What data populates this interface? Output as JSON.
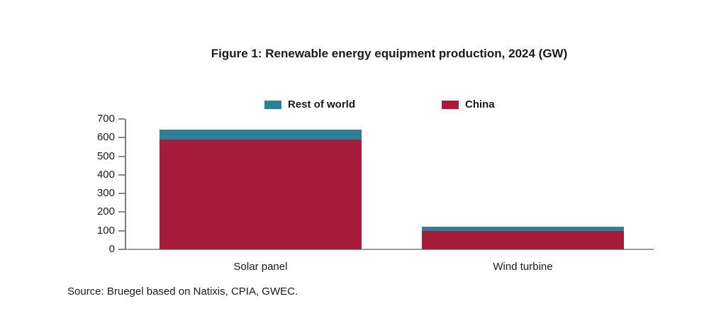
{
  "figure": {
    "source": "Source: Bruegel based on Natixis, CPIA, GWEC."
  },
  "chart_data": {
    "type": "bar",
    "stacked": true,
    "title": "Figure 1: Renewable energy equipment production, 2024 (GW)",
    "categories": [
      "Solar panel",
      "Wind turbine"
    ],
    "series": [
      {
        "name": "China",
        "color": "#A81C3B",
        "values": [
          588,
          100
        ]
      },
      {
        "name": "Rest of world",
        "color": "#2E7F97",
        "values": [
          55,
          22
        ]
      }
    ],
    "totals": [
      643,
      122
    ],
    "legend": [
      {
        "label": "Rest of world",
        "color": "#2E7F97"
      },
      {
        "label": "China",
        "color": "#A81C3B"
      }
    ],
    "legend_position": "top",
    "xlabel": "",
    "ylabel": "",
    "ylim": [
      0,
      700
    ],
    "yticks": [
      0,
      100,
      200,
      300,
      400,
      500,
      600,
      700
    ],
    "grid": false,
    "unit": "GW"
  }
}
